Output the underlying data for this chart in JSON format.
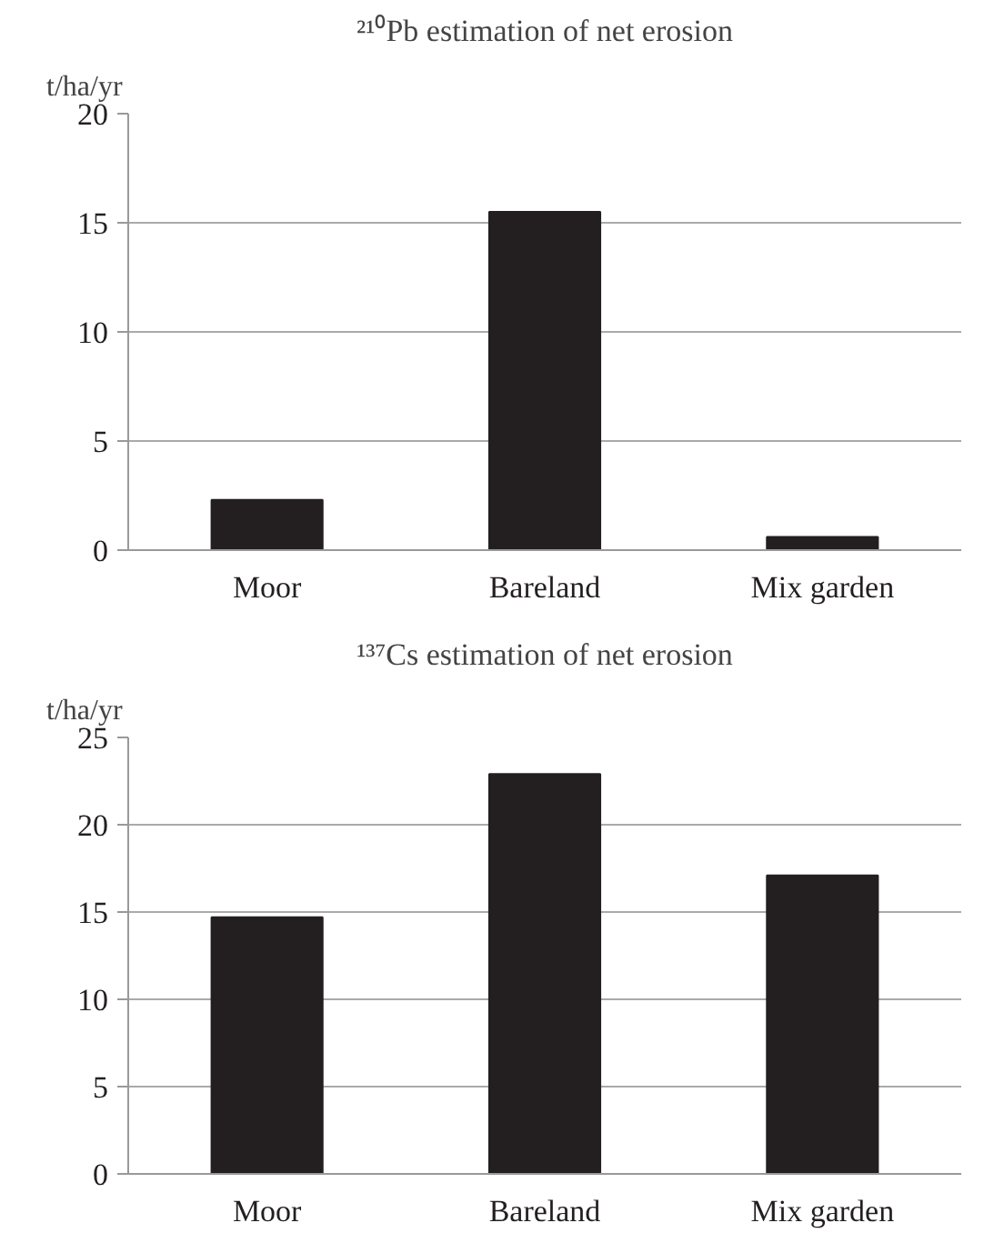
{
  "chart_data": [
    {
      "type": "bar",
      "title": "²¹⁰Pb estimation of net erosion",
      "ylabel": "t/ha/yr",
      "categories": [
        "Moor",
        "Bareland",
        "Mix garden"
      ],
      "values": [
        2.3,
        15.5,
        0.6
      ],
      "color": "#231f20",
      "ylim": [
        0,
        20
      ],
      "yticks": [
        0,
        5,
        10,
        15,
        20
      ],
      "grid": "y"
    },
    {
      "type": "bar",
      "title": "¹³⁷Cs estimation of net erosion",
      "ylabel": "t/ha/yr",
      "categories": [
        "Moor",
        "Bareland",
        "Mix garden"
      ],
      "values": [
        14.7,
        22.9,
        17.1
      ],
      "color": "#231f20",
      "ylim": [
        0,
        25
      ],
      "yticks": [
        0,
        5,
        10,
        15,
        20,
        25
      ],
      "grid": "y"
    }
  ]
}
